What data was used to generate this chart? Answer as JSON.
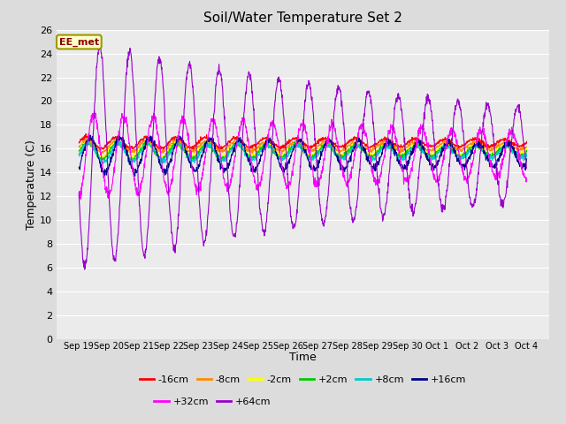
{
  "title": "Soil/Water Temperature Set 2",
  "xlabel": "Time",
  "ylabel": "Temperature (C)",
  "ylim": [
    0,
    26
  ],
  "yticks": [
    0,
    2,
    4,
    6,
    8,
    10,
    12,
    14,
    16,
    18,
    20,
    22,
    24,
    26
  ],
  "annotation_text": "EE_met",
  "annotation_color": "#8B0000",
  "annotation_bg": "#FFFFCC",
  "annotation_border": "#999900",
  "series": [
    {
      "label": "-16cm",
      "color": "#FF0000",
      "base": 16.5,
      "amp": 0.5,
      "phase": 0.0,
      "noise": 0.08,
      "decay": 0.04
    },
    {
      "label": "-8cm",
      "color": "#FF8C00",
      "base": 16.2,
      "amp": 0.5,
      "phase": 0.1,
      "noise": 0.08,
      "decay": 0.04
    },
    {
      "label": "-2cm",
      "color": "#FFFF00",
      "base": 15.9,
      "amp": 0.6,
      "phase": 0.15,
      "noise": 0.1,
      "decay": 0.04
    },
    {
      "label": "+2cm",
      "color": "#00CC00",
      "base": 15.8,
      "amp": 0.7,
      "phase": 0.2,
      "noise": 0.1,
      "decay": 0.04
    },
    {
      "label": "+8cm",
      "color": "#00CCCC",
      "base": 15.7,
      "amp": 0.8,
      "phase": 0.4,
      "noise": 0.1,
      "decay": 0.04
    },
    {
      "label": "+16cm",
      "color": "#00008B",
      "base": 15.5,
      "amp": 1.5,
      "phase": 0.8,
      "noise": 0.15,
      "decay": 0.03
    },
    {
      "label": "+32cm",
      "color": "#FF00FF",
      "base": 15.5,
      "amp": 3.5,
      "phase": 1.5,
      "noise": 0.2,
      "decay": 0.04
    },
    {
      "label": "+64cm",
      "color": "#9900CC",
      "base": 15.5,
      "amp": 9.5,
      "phase": 2.8,
      "noise": 0.2,
      "decay": 0.06
    }
  ],
  "x_tick_labels": [
    "Sep 19",
    "Sep 20",
    "Sep 21",
    "Sep 22",
    "Sep 23",
    "Sep 24",
    "Sep 25",
    "Sep 26",
    "Sep 27",
    "Sep 28",
    "Sep 29",
    "Sep 30",
    "Oct 1",
    "Oct 2",
    "Oct 3",
    "Oct 4"
  ],
  "n_points": 1440,
  "bg_color": "#DCDCDC",
  "plot_bg_color": "#EBEBEB",
  "grid_color": "#FFFFFF",
  "figwidth": 6.4,
  "figheight": 4.8,
  "dpi": 100
}
